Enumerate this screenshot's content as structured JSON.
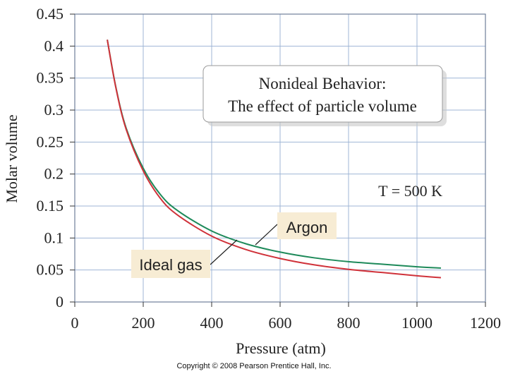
{
  "chart_data": {
    "type": "line",
    "title_box": [
      "Nonideal Behavior:",
      "The effect of particle volume"
    ],
    "xlabel": "Pressure (atm)",
    "ylabel": "Molar volume",
    "xlim": [
      0,
      1200
    ],
    "ylim": [
      0,
      0.45
    ],
    "x_ticks": [
      0,
      200,
      400,
      600,
      800,
      1000,
      1200
    ],
    "y_ticks": [
      0,
      0.05,
      0.1,
      0.15,
      0.2,
      0.25,
      0.3,
      0.35,
      0.4,
      0.45
    ],
    "x_tick_labels": [
      "0",
      "200",
      "400",
      "600",
      "800",
      "1000",
      "1200"
    ],
    "y_tick_labels": [
      "0",
      "0.05",
      "0.1",
      "0.15",
      "0.2",
      "0.25",
      "0.3",
      "0.35",
      "0.4",
      "0.45"
    ],
    "grid": true,
    "annotation": "T = 500 K",
    "series": [
      {
        "name": "Ideal gas",
        "color": "#d0323a",
        "x": [
          95,
          120,
          150,
          200,
          250,
          300,
          400,
          500,
          600,
          700,
          800,
          900,
          1000,
          1070
        ],
        "y": [
          0.41,
          0.335,
          0.27,
          0.205,
          0.162,
          0.136,
          0.103,
          0.082,
          0.068,
          0.058,
          0.051,
          0.046,
          0.041,
          0.038
        ]
      },
      {
        "name": "Argon",
        "color": "#1e8a5a",
        "x": [
          95,
          120,
          150,
          200,
          250,
          300,
          400,
          500,
          600,
          700,
          800,
          900,
          1000,
          1070
        ],
        "y": [
          0.41,
          0.336,
          0.272,
          0.209,
          0.168,
          0.143,
          0.111,
          0.091,
          0.078,
          0.069,
          0.063,
          0.059,
          0.055,
          0.053
        ]
      }
    ]
  },
  "copyright": "Copyright © 2008 Pearson Prentice Hall, Inc."
}
